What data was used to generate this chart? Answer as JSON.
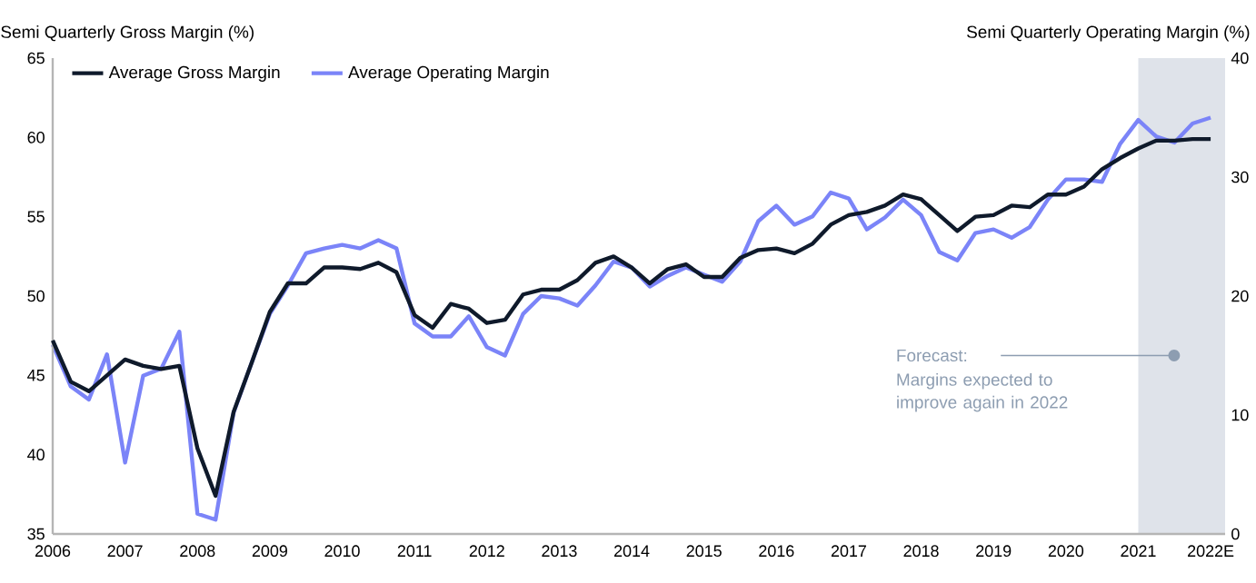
{
  "chart_data": {
    "type": "line",
    "ylabel": "Semi Quarterly Gross Margin (%)",
    "y2label": "Semi Quarterly Operating Margin (%)",
    "x": [
      2006.0,
      2006.25,
      2006.5,
      2006.75,
      2007.0,
      2007.25,
      2007.5,
      2007.75,
      2008.0,
      2008.25,
      2008.5,
      2008.75,
      2009.0,
      2009.25,
      2009.5,
      2009.75,
      2010.0,
      2010.25,
      2010.5,
      2010.75,
      2011.0,
      2011.25,
      2011.5,
      2011.75,
      2012.0,
      2012.25,
      2012.5,
      2012.75,
      2013.0,
      2013.25,
      2013.5,
      2013.75,
      2014.0,
      2014.25,
      2014.5,
      2014.75,
      2015.0,
      2015.25,
      2015.5,
      2015.75,
      2016.0,
      2016.25,
      2016.5,
      2016.75,
      2017.0,
      2017.25,
      2017.5,
      2017.75,
      2018.0,
      2018.25,
      2018.5,
      2018.75,
      2019.0,
      2019.25,
      2019.5,
      2019.75,
      2020.0,
      2020.25,
      2020.5,
      2020.75,
      2021.0,
      2021.25,
      2021.5,
      2021.75,
      2022.0
    ],
    "series": [
      {
        "name": "Average Gross Margin",
        "color": "#0f1a2b",
        "values": [
          47.2,
          44.6,
          44.0,
          45.0,
          46.0,
          45.6,
          45.4,
          45.6,
          40.4,
          37.4,
          42.7,
          45.8,
          49.0,
          50.8,
          50.8,
          51.8,
          51.8,
          51.7,
          52.1,
          51.5,
          48.8,
          48.0,
          49.5,
          49.2,
          48.3,
          48.5,
          50.1,
          50.4,
          50.4,
          51.0,
          52.1,
          52.5,
          51.8,
          50.8,
          51.7,
          52.0,
          51.2,
          51.2,
          52.4,
          52.9,
          53.0,
          52.7,
          53.3,
          54.5,
          55.1,
          55.3,
          55.7,
          56.4,
          56.1,
          55.1,
          54.1,
          55.0,
          55.1,
          55.7,
          55.6,
          56.4,
          56.4,
          56.9,
          58.0,
          58.7,
          59.3,
          59.8,
          59.8,
          59.9,
          59.9
        ]
      },
      {
        "name": "Average Operating Margin",
        "color": "#7b84f8",
        "axis": "y2",
        "values": [
          15.9,
          12.4,
          11.3,
          15.1,
          6.0,
          13.3,
          13.9,
          17.0,
          1.7,
          1.2,
          10.2,
          14.4,
          18.5,
          20.9,
          23.6,
          24.0,
          24.3,
          24.0,
          24.7,
          24.0,
          17.7,
          16.6,
          16.6,
          18.3,
          15.7,
          15.0,
          18.5,
          20.0,
          19.8,
          19.2,
          20.9,
          22.9,
          22.4,
          20.8,
          21.7,
          22.4,
          21.8,
          21.2,
          22.9,
          26.3,
          27.6,
          26.0,
          26.7,
          28.7,
          28.2,
          25.6,
          26.6,
          28.1,
          26.8,
          23.7,
          23.0,
          25.3,
          25.6,
          24.9,
          25.8,
          28.1,
          29.8,
          29.8,
          29.6,
          32.8,
          34.8,
          33.4,
          32.9,
          34.5,
          35.0
        ]
      }
    ],
    "xlim": [
      2006,
      2022.2
    ],
    "xticks": [
      2006,
      2007,
      2008,
      2009,
      2010,
      2011,
      2012,
      2013,
      2014,
      2015,
      2016,
      2017,
      2018,
      2019,
      2020,
      2021,
      {
        "value": 2022,
        "label": "2022E"
      }
    ],
    "ylim": [
      35,
      65
    ],
    "yticks": [
      35,
      40,
      45,
      50,
      55,
      60,
      65
    ],
    "y2lim": [
      0,
      40
    ],
    "y2ticks": [
      0,
      10,
      20,
      30,
      40
    ],
    "bands": [
      {
        "axis": "x",
        "from": 2021,
        "to": 2022.2,
        "color": "#dfe3ea"
      }
    ],
    "annotations": [
      "Forecast:",
      "Margins expected to improve again in 2022"
    ],
    "legend": "top left",
    "grid": false,
    "marker": "none",
    "line_style": "solid"
  }
}
